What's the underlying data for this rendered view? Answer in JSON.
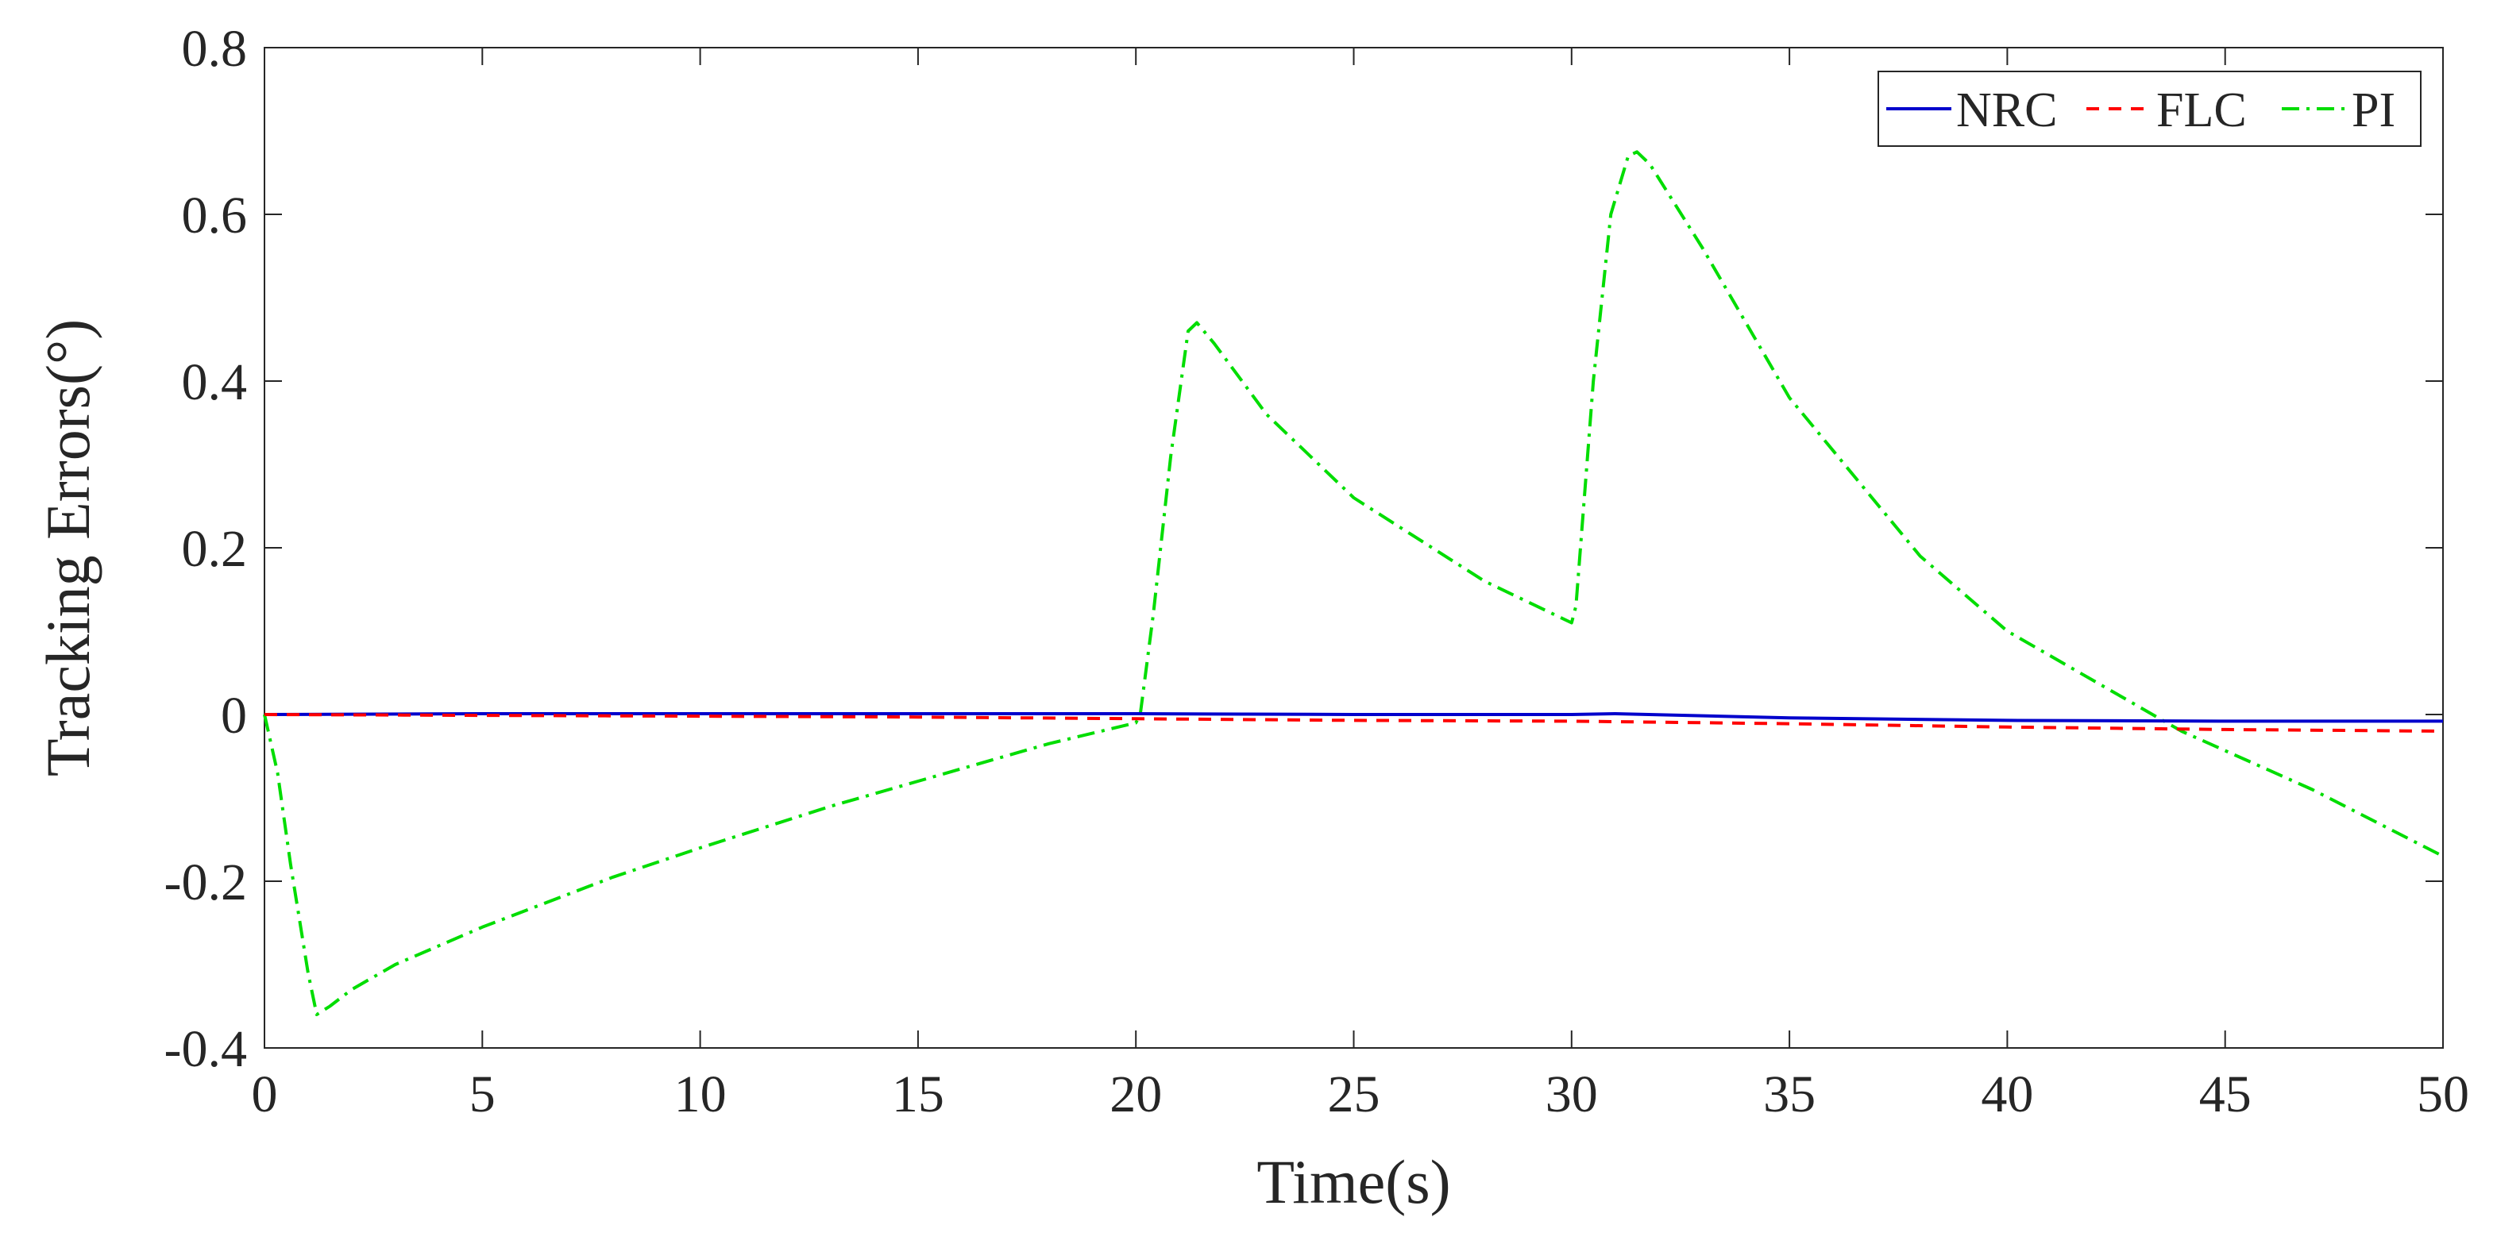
{
  "chart_data": {
    "type": "line",
    "title": "",
    "xlabel": "Time(s)",
    "ylabel": "Tracking Errors(°)",
    "xlim": [
      0,
      50
    ],
    "ylim": [
      -0.4,
      0.8
    ],
    "xticks": [
      0,
      5,
      10,
      15,
      20,
      25,
      30,
      35,
      40,
      45,
      50
    ],
    "yticks": [
      -0.4,
      -0.2,
      0,
      0.2,
      0.4,
      0.6,
      0.8
    ],
    "xtick_labels": [
      "0",
      "5",
      "10",
      "15",
      "20",
      "25",
      "30",
      "35",
      "40",
      "45",
      "50"
    ],
    "ytick_labels": [
      "-0.4",
      "-0.2",
      "0",
      "0.2",
      "0.4",
      "0.6",
      "0.8"
    ],
    "grid": false,
    "legend_position": "top-right",
    "series": [
      {
        "name": "NRC",
        "color": "#0000cc",
        "line_style": "solid",
        "x": [
          0,
          5,
          10,
          15,
          20,
          25,
          30,
          31,
          35,
          40,
          45,
          50
        ],
        "y": [
          0,
          0.001,
          0.001,
          0.001,
          0.001,
          0.0,
          0.0,
          0.001,
          -0.004,
          -0.007,
          -0.008,
          -0.008
        ]
      },
      {
        "name": "FLC",
        "color": "#ff0000",
        "line_style": "dashed",
        "x": [
          0,
          5,
          10,
          15,
          20,
          25,
          30,
          35,
          40,
          45,
          50
        ],
        "y": [
          0,
          -0.001,
          -0.002,
          -0.003,
          -0.005,
          -0.007,
          -0.008,
          -0.011,
          -0.015,
          -0.018,
          -0.02
        ]
      },
      {
        "name": "PI",
        "color": "#00dd00",
        "line_style": "dashdot",
        "x": [
          0,
          0.3,
          0.6,
          1.0,
          1.2,
          1.5,
          2,
          3,
          5,
          8,
          10,
          13,
          15,
          18,
          20,
          20.1,
          20.4,
          20.8,
          21.2,
          21.4,
          21.8,
          23,
          25,
          28,
          30,
          30.1,
          30.5,
          30.9,
          31.3,
          31.5,
          31.8,
          33,
          35,
          38,
          40,
          43,
          44,
          47,
          50
        ],
        "y": [
          0,
          -0.07,
          -0.18,
          -0.31,
          -0.36,
          -0.35,
          -0.33,
          -0.3,
          -0.255,
          -0.195,
          -0.16,
          -0.11,
          -0.08,
          -0.035,
          -0.01,
          0.0,
          0.12,
          0.31,
          0.46,
          0.47,
          0.445,
          0.36,
          0.26,
          0.16,
          0.11,
          0.13,
          0.4,
          0.6,
          0.67,
          0.675,
          0.66,
          0.56,
          0.38,
          0.19,
          0.1,
          0.01,
          -0.02,
          -0.09,
          -0.17
        ]
      }
    ]
  }
}
